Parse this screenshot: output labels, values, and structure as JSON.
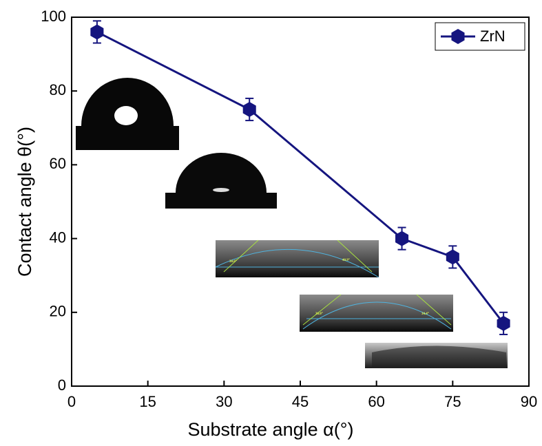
{
  "chart_data": {
    "type": "line",
    "x_label": "Substrate angle α(°)",
    "y_label": "Contact angle θ(°)",
    "x": [
      5,
      35,
      65,
      75,
      85
    ],
    "series": [
      {
        "name": "ZrN",
        "color": "#15157f",
        "values": [
          96,
          75,
          40,
          35,
          17
        ],
        "errors": [
          3,
          3,
          3,
          3,
          3
        ]
      }
    ],
    "xlim": [
      0,
      90
    ],
    "xticks": [
      0,
      15,
      30,
      45,
      60,
      75,
      90
    ],
    "ylim": [
      0,
      100
    ],
    "yticks": [
      0,
      20,
      40,
      60,
      80,
      100
    ],
    "grid": false,
    "legend": "top-right",
    "annotations": [
      "38.6°",
      "40.9°",
      "36.0°",
      "34.4°"
    ]
  }
}
